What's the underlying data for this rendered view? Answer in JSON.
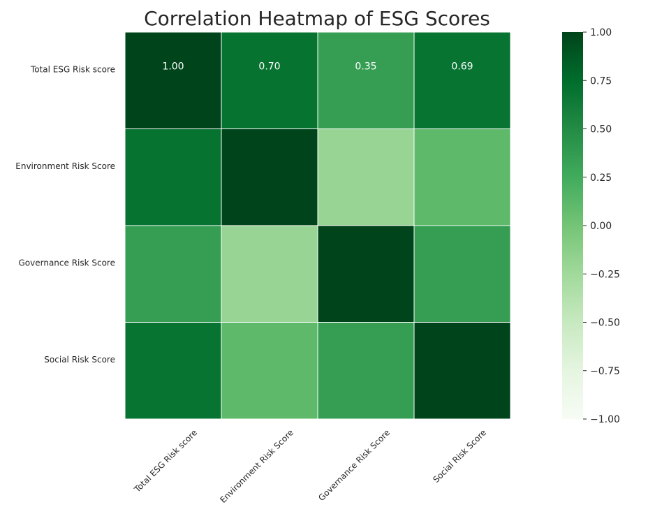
{
  "chart_data": {
    "type": "heatmap",
    "title": "Correlation Heatmap of ESG Scores",
    "row_labels": [
      "Total ESG Risk score",
      "Environment Risk Score",
      "Governance Risk Score",
      "Social Risk Score"
    ],
    "col_labels": [
      "Total ESG Risk score",
      "Environment Risk Score",
      "Governance Risk Score",
      "Social Risk Score"
    ],
    "values": [
      [
        1.0,
        0.7,
        0.35,
        0.69
      ],
      [
        0.7,
        1.0,
        -0.2,
        0.11
      ],
      [
        0.35,
        -0.2,
        1.0,
        0.35
      ],
      [
        0.69,
        0.11,
        0.35,
        1.0
      ]
    ],
    "annotations": [
      [
        "1.00",
        "0.70",
        "0.35",
        "0.69"
      ],
      [
        "",
        "",
        "",
        ""
      ],
      [
        "",
        "",
        "",
        ""
      ],
      [
        "",
        "",
        "",
        ""
      ]
    ],
    "vmin": -1.0,
    "vmax": 1.0,
    "colormap": "Greens",
    "colorbar_ticks": [
      "1.00",
      "0.75",
      "0.50",
      "0.25",
      "0.00",
      "−0.25",
      "−0.50",
      "−0.75",
      "−1.00"
    ],
    "colorbar_tick_values": [
      1.0,
      0.75,
      0.5,
      0.25,
      0.0,
      -0.25,
      -0.5,
      -0.75,
      -1.0
    ],
    "grid_color": "#ffffff"
  }
}
